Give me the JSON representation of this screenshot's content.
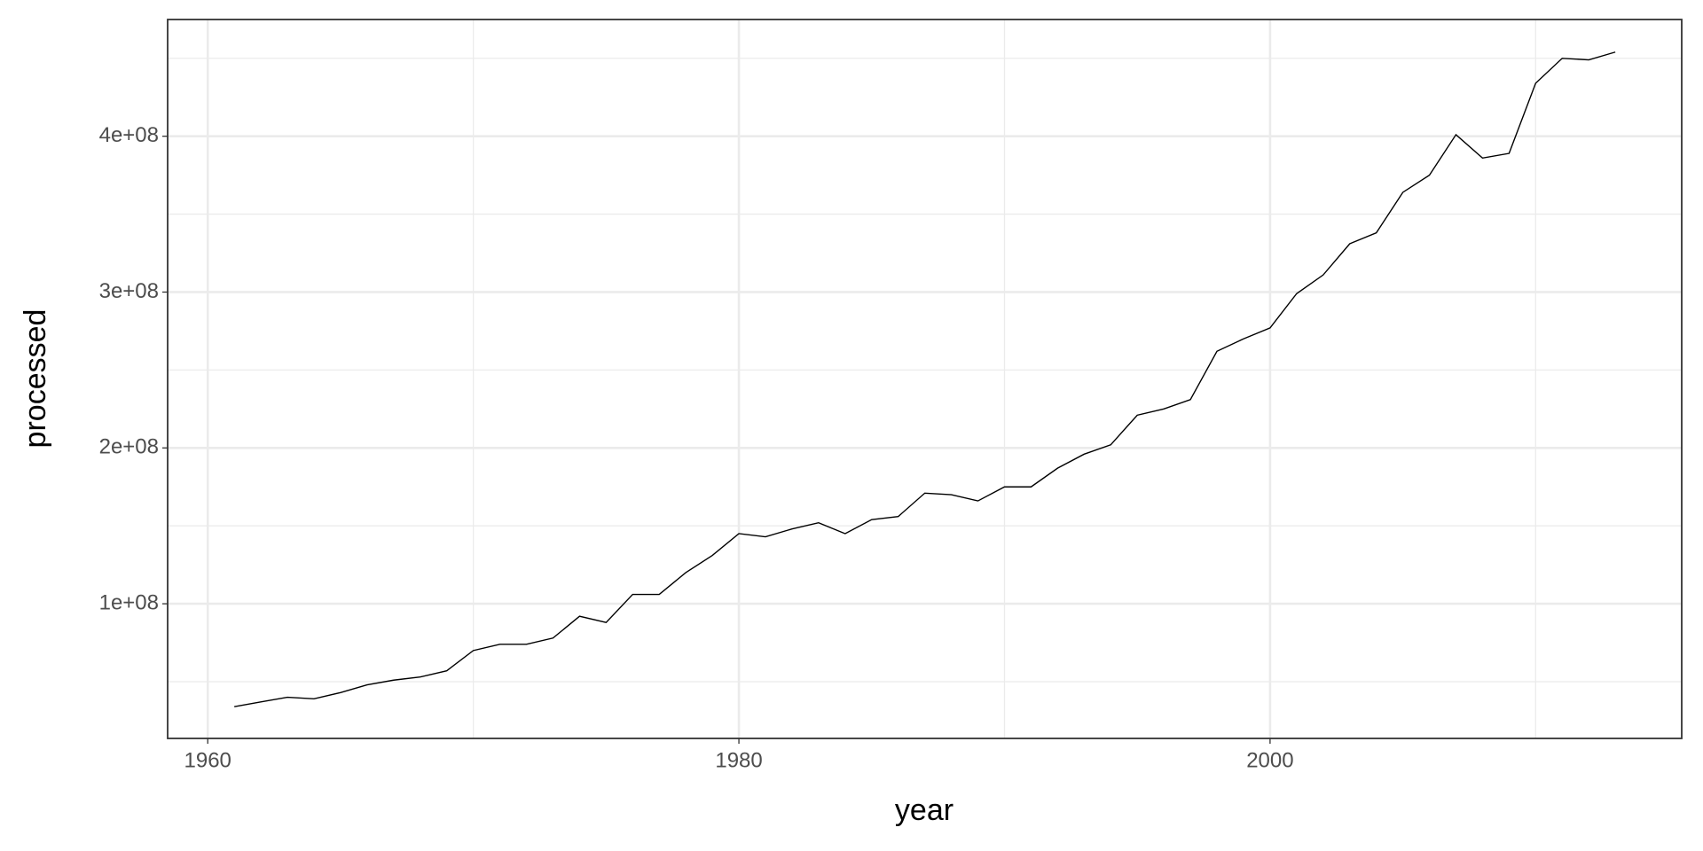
{
  "chart_data": {
    "type": "line",
    "x_label": "year",
    "y_label": "processed",
    "x": [
      1961,
      1962,
      1963,
      1964,
      1965,
      1966,
      1967,
      1968,
      1969,
      1970,
      1971,
      1972,
      1973,
      1974,
      1975,
      1976,
      1977,
      1978,
      1979,
      1980,
      1981,
      1982,
      1983,
      1984,
      1985,
      1986,
      1987,
      1988,
      1989,
      1990,
      1991,
      1992,
      1993,
      1994,
      1995,
      1996,
      1997,
      1998,
      1999,
      2000,
      2001,
      2002,
      2003,
      2004,
      2005,
      2006,
      2007,
      2008,
      2009,
      2010,
      2011,
      2012,
      2013
    ],
    "values": [
      34000000,
      37000000,
      40000000,
      39000000,
      43000000,
      48000000,
      51000000,
      53000000,
      57000000,
      70000000,
      74000000,
      74000000,
      78000000,
      92000000,
      88000000,
      106000000,
      106000000,
      120000000,
      131000000,
      145000000,
      143000000,
      148000000,
      152000000,
      145000000,
      154000000,
      156000000,
      171000000,
      170000000,
      166000000,
      175000000,
      175000000,
      187000000,
      196000000,
      202000000,
      221000000,
      225000000,
      231000000,
      262000000,
      270000000,
      277000000,
      299000000,
      311000000,
      331000000,
      338000000,
      364000000,
      375000000,
      401000000,
      386000000,
      389000000,
      434000000,
      450000000,
      449000000,
      454000000
    ],
    "color": "#000000",
    "xlim": [
      1958.49,
      2015.5
    ],
    "xticks": [
      1960,
      1980,
      2000
    ],
    "ylim": [
      13600000,
      474900000
    ],
    "yticks": [
      {
        "value": 100000000,
        "label": "1e+08"
      },
      {
        "value": 200000000,
        "label": "2e+08"
      },
      {
        "value": 300000000,
        "label": "3e+08"
      },
      {
        "value": 400000000,
        "label": "4e+08"
      }
    ],
    "grid": true
  }
}
